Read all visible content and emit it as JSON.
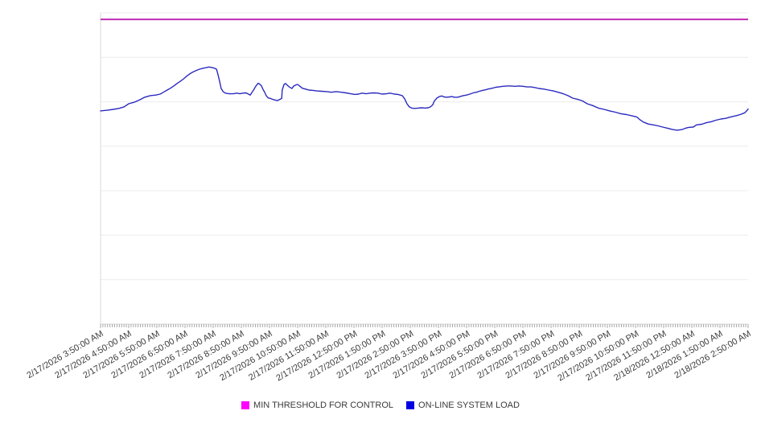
{
  "chart_data": {
    "type": "line",
    "title": "",
    "xlabel": "",
    "ylabel": "",
    "grid": "horizontal",
    "legend_position": "bottom-center",
    "y_axis": {
      "tick_labels_visible": false,
      "scale": "relative load (0-100, unlabeled in UI)",
      "range": [
        0,
        100
      ],
      "gridline_divisions": 7
    },
    "x_unit": "minutes since first tick (2/17/2026 3:50:00 AM)",
    "x_range_minutes": [
      0,
      1380
    ],
    "x_major_tick_interval_minutes": 60,
    "x_minor_tick_interval_minutes": 5,
    "x_tick_labels": [
      "2/17/2026 3:50:00 AM",
      "2/17/2026 4:50:00 AM",
      "2/17/2026 5:50:00 AM",
      "2/17/2026 6:50:00 AM",
      "2/17/2026 7:50:00 AM",
      "2/17/2026 8:50:00 AM",
      "2/17/2026 9:50:00 AM",
      "2/17/2026 10:50:00 AM",
      "2/17/2026 11:50:00 AM",
      "2/17/2026 12:50:00 PM",
      "2/17/2026 1:50:00 PM",
      "2/17/2026 2:50:00 PM",
      "2/17/2026 3:50:00 PM",
      "2/17/2026 4:50:00 PM",
      "2/17/2026 5:50:00 PM",
      "2/17/2026 6:50:00 PM",
      "2/17/2026 7:50:00 PM",
      "2/17/2026 8:50:00 PM",
      "2/17/2026 9:50:00 PM",
      "2/17/2026 10:50:00 PM",
      "2/17/2026 11:50:00 PM",
      "2/18/2026 12:50:00 AM",
      "2/18/2026 1:50:00 AM",
      "2/18/2026 2:50:00 AM"
    ],
    "series": [
      {
        "name": "MIN THRESHOLD FOR CONTROL",
        "type": "constant",
        "value": 97.9,
        "line_color": "#BE2CB4",
        "legend_color": "#FF00FF",
        "line_width": 2
      },
      {
        "name": "ON-LINE SYSTEM LOAD",
        "type": "points",
        "line_color": "#2A2AC0",
        "legend_color": "#0000E0",
        "line_width": 1.4,
        "points": [
          [
            0,
            68.5
          ],
          [
            14,
            68.7
          ],
          [
            27,
            69.0
          ],
          [
            39,
            69.3
          ],
          [
            50,
            69.8
          ],
          [
            60,
            70.8
          ],
          [
            72,
            71.3
          ],
          [
            84,
            72.1
          ],
          [
            94,
            72.9
          ],
          [
            106,
            73.4
          ],
          [
            118,
            73.6
          ],
          [
            127,
            73.9
          ],
          [
            134,
            74.5
          ],
          [
            142,
            75.2
          ],
          [
            149,
            75.8
          ],
          [
            156,
            76.5
          ],
          [
            163,
            77.3
          ],
          [
            170,
            78.0
          ],
          [
            177,
            78.8
          ],
          [
            183,
            79.6
          ],
          [
            190,
            80.4
          ],
          [
            197,
            81.0
          ],
          [
            204,
            81.5
          ],
          [
            211,
            81.9
          ],
          [
            218,
            82.2
          ],
          [
            225,
            82.4
          ],
          [
            231,
            82.6
          ],
          [
            238,
            82.4
          ],
          [
            243,
            82.2
          ],
          [
            247,
            81.9
          ],
          [
            250,
            80.4
          ],
          [
            254,
            77.8
          ],
          [
            257,
            75.7
          ],
          [
            261,
            74.7
          ],
          [
            266,
            74.2
          ],
          [
            274,
            74.0
          ],
          [
            283,
            74.0
          ],
          [
            290,
            74.2
          ],
          [
            297,
            74.0
          ],
          [
            303,
            74.2
          ],
          [
            310,
            74.3
          ],
          [
            315,
            73.9
          ],
          [
            319,
            73.6
          ],
          [
            322,
            74.3
          ],
          [
            326,
            75.2
          ],
          [
            329,
            76.0
          ],
          [
            333,
            76.9
          ],
          [
            336,
            77.4
          ],
          [
            339,
            77.1
          ],
          [
            343,
            76.5
          ],
          [
            346,
            75.5
          ],
          [
            350,
            74.4
          ],
          [
            353,
            73.4
          ],
          [
            357,
            72.7
          ],
          [
            362,
            72.5
          ],
          [
            367,
            72.2
          ],
          [
            372,
            72.0
          ],
          [
            377,
            71.8
          ],
          [
            382,
            72.2
          ],
          [
            386,
            72.5
          ],
          [
            387,
            75.2
          ],
          [
            391,
            77.0
          ],
          [
            394,
            77.3
          ],
          [
            399,
            76.6
          ],
          [
            403,
            76.1
          ],
          [
            408,
            75.7
          ],
          [
            411,
            76.4
          ],
          [
            417,
            76.9
          ],
          [
            420,
            77.0
          ],
          [
            425,
            76.4
          ],
          [
            430,
            75.8
          ],
          [
            437,
            75.5
          ],
          [
            444,
            75.2
          ],
          [
            453,
            75.1
          ],
          [
            461,
            74.9
          ],
          [
            471,
            74.8
          ],
          [
            482,
            74.7
          ],
          [
            492,
            74.5
          ],
          [
            502,
            74.7
          ],
          [
            513,
            74.5
          ],
          [
            523,
            74.3
          ],
          [
            533,
            74.0
          ],
          [
            542,
            73.8
          ],
          [
            550,
            73.9
          ],
          [
            557,
            74.2
          ],
          [
            566,
            74.0
          ],
          [
            574,
            74.2
          ],
          [
            583,
            74.3
          ],
          [
            591,
            74.2
          ],
          [
            600,
            73.9
          ],
          [
            609,
            74.0
          ],
          [
            617,
            74.2
          ],
          [
            626,
            73.9
          ],
          [
            634,
            73.8
          ],
          [
            643,
            73.4
          ],
          [
            648,
            72.4
          ],
          [
            653,
            70.8
          ],
          [
            658,
            69.8
          ],
          [
            663,
            69.4
          ],
          [
            670,
            69.3
          ],
          [
            677,
            69.4
          ],
          [
            684,
            69.5
          ],
          [
            691,
            69.4
          ],
          [
            698,
            69.5
          ],
          [
            703,
            69.8
          ],
          [
            708,
            70.5
          ],
          [
            711,
            71.6
          ],
          [
            717,
            72.7
          ],
          [
            722,
            73.1
          ],
          [
            727,
            73.3
          ],
          [
            732,
            73.0
          ],
          [
            737,
            72.9
          ],
          [
            744,
            73.0
          ],
          [
            749,
            73.1
          ],
          [
            754,
            72.9
          ],
          [
            761,
            72.9
          ],
          [
            766,
            73.1
          ],
          [
            773,
            73.4
          ],
          [
            780,
            73.6
          ],
          [
            787,
            73.9
          ],
          [
            794,
            74.3
          ],
          [
            801,
            74.5
          ],
          [
            807,
            74.8
          ],
          [
            814,
            75.1
          ],
          [
            821,
            75.3
          ],
          [
            828,
            75.6
          ],
          [
            835,
            75.8
          ],
          [
            842,
            76.1
          ],
          [
            849,
            76.2
          ],
          [
            857,
            76.4
          ],
          [
            866,
            76.5
          ],
          [
            874,
            76.5
          ],
          [
            883,
            76.4
          ],
          [
            891,
            76.5
          ],
          [
            900,
            76.4
          ],
          [
            909,
            76.2
          ],
          [
            917,
            76.2
          ],
          [
            926,
            76.0
          ],
          [
            934,
            75.7
          ],
          [
            945,
            75.5
          ],
          [
            955,
            75.2
          ],
          [
            965,
            74.9
          ],
          [
            975,
            74.5
          ],
          [
            986,
            74.0
          ],
          [
            996,
            73.4
          ],
          [
            1006,
            72.6
          ],
          [
            1017,
            72.2
          ],
          [
            1027,
            71.7
          ],
          [
            1037,
            70.8
          ],
          [
            1049,
            70.2
          ],
          [
            1061,
            69.4
          ],
          [
            1073,
            69.0
          ],
          [
            1085,
            68.5
          ],
          [
            1097,
            68.1
          ],
          [
            1109,
            67.6
          ],
          [
            1121,
            67.3
          ],
          [
            1133,
            66.9
          ],
          [
            1143,
            66.5
          ],
          [
            1150,
            65.6
          ],
          [
            1157,
            64.9
          ],
          [
            1167,
            64.3
          ],
          [
            1178,
            64.0
          ],
          [
            1188,
            63.7
          ],
          [
            1198,
            63.3
          ],
          [
            1209,
            62.9
          ],
          [
            1219,
            62.5
          ],
          [
            1229,
            62.3
          ],
          [
            1239,
            62.5
          ],
          [
            1246,
            62.9
          ],
          [
            1253,
            63.2
          ],
          [
            1263,
            63.3
          ],
          [
            1270,
            64.0
          ],
          [
            1281,
            64.2
          ],
          [
            1291,
            64.7
          ],
          [
            1301,
            65.0
          ],
          [
            1311,
            65.5
          ],
          [
            1322,
            65.9
          ],
          [
            1332,
            66.1
          ],
          [
            1342,
            66.5
          ],
          [
            1353,
            66.9
          ],
          [
            1363,
            67.3
          ],
          [
            1373,
            67.9
          ],
          [
            1378,
            68.7
          ],
          [
            1380,
            69.1
          ]
        ]
      }
    ],
    "axis_colors": {
      "gridline": "#ececec",
      "axis_line": "#d8d8d8",
      "tick": "#a8a8a8",
      "label_text": "#3d3d3d"
    }
  }
}
